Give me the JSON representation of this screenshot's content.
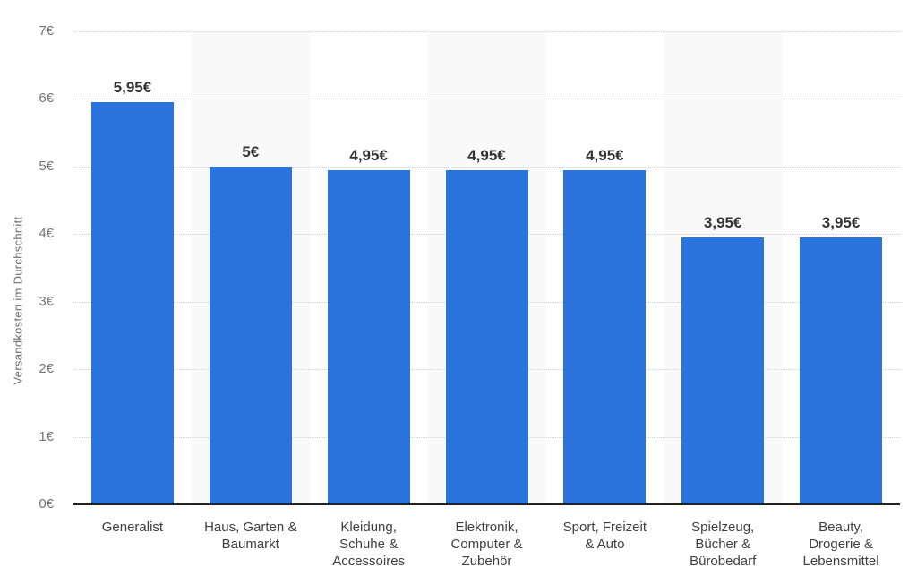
{
  "chart_data": {
    "type": "bar",
    "title": "",
    "ylabel": "Versandkosten im Durchschnitt",
    "xlabel": "",
    "ylim": [
      0,
      7
    ],
    "ytick_labels": [
      "0€",
      "1€",
      "2€",
      "3€",
      "4€",
      "5€",
      "6€",
      "7€"
    ],
    "grid": "dotted horizontal lines at every 1€, alternating light column stripes",
    "legend_position": "none",
    "categories": [
      "Generalist",
      "Haus, Garten & Baumarkt",
      "Kleidung, Schuhe & Accessoires",
      "Elektronik, Computer & Zubehör",
      "Sport, Freizeit & Auto",
      "Spielzeug, Bücher & Bürobedarf",
      "Beauty, Drogerie & Lebensmittel"
    ],
    "category_label_lines": [
      [
        "Generalist"
      ],
      [
        "Haus, Garten &",
        "Baumarkt"
      ],
      [
        "Kleidung,",
        "Schuhe &",
        "Accessoires"
      ],
      [
        "Elektronik,",
        "Computer &",
        "Zubehör"
      ],
      [
        "Sport, Freizeit",
        "& Auto"
      ],
      [
        "Spielzeug,",
        "Bücher &",
        "Bürobedarf"
      ],
      [
        "Beauty,",
        "Drogerie &",
        "Lebensmittel"
      ]
    ],
    "values": [
      5.95,
      5,
      4.95,
      4.95,
      4.95,
      3.95,
      3.95
    ],
    "value_labels": [
      "5,95€",
      "5€",
      "4,95€",
      "4,95€",
      "4,95€",
      "3,95€",
      "3,95€"
    ],
    "colors": {
      "bar": "#2b74dd",
      "stripe": "#f9f9f9",
      "gridline": "#cfcfcf",
      "axis_line": "#222222",
      "tick_text": "#757575",
      "value_text": "#333333",
      "category_text": "#3f3f3f"
    }
  }
}
